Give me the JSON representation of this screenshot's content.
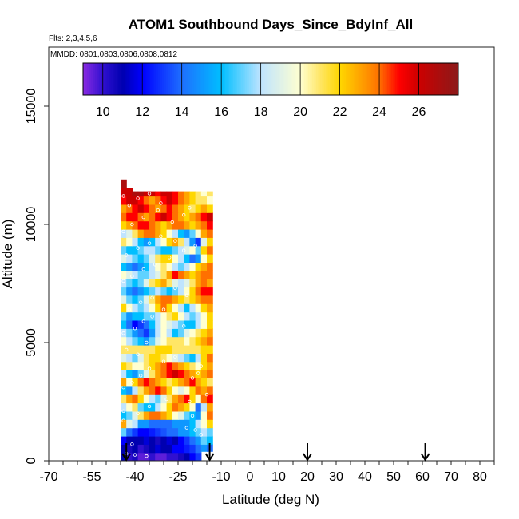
{
  "chart_data": {
    "type": "heatmap",
    "title": "ATOM1 Southbound Days_Since_BdyInf_All",
    "flights_note": "Flts: 2,3,4,5,6",
    "dates_note": "MMDD: 0801,0803,0806,0808,0812",
    "xlabel": "Latitude (deg N)",
    "ylabel": "Altitude (m)",
    "xlim": [
      -70,
      85
    ],
    "ylim": [
      0,
      17500
    ],
    "x_ticks": [
      -70,
      -55,
      -40,
      -25,
      -10,
      0,
      10,
      20,
      30,
      40,
      50,
      60,
      70,
      80
    ],
    "x_minor_step": 5,
    "y_ticks": [
      0,
      5000,
      10000,
      15000
    ],
    "colorbar": {
      "range": [
        9,
        28
      ],
      "ticks": [
        10,
        12,
        14,
        16,
        18,
        20,
        22,
        24,
        26
      ],
      "tick_labels": [
        "10",
        "12",
        "14",
        "16",
        "18",
        "20",
        "22",
        "24",
        "26"
      ],
      "stops": [
        {
          "v": 9,
          "c": "#8a2be2"
        },
        {
          "v": 10,
          "c": "#3010d0"
        },
        {
          "v": 11,
          "c": "#0000b0"
        },
        {
          "v": 12,
          "c": "#0000ff"
        },
        {
          "v": 14,
          "c": "#1e6fff"
        },
        {
          "v": 16,
          "c": "#00bfff"
        },
        {
          "v": 18,
          "c": "#bfe4ff"
        },
        {
          "v": 20,
          "c": "#ffffd0"
        },
        {
          "v": 21,
          "c": "#ffe666"
        },
        {
          "v": 22,
          "c": "#ffd700"
        },
        {
          "v": 23,
          "c": "#ffa500"
        },
        {
          "v": 24,
          "c": "#ff7000"
        },
        {
          "v": 25,
          "c": "#ff0000"
        },
        {
          "v": 26,
          "c": "#cc0000"
        },
        {
          "v": 28,
          "c": "#8b1a1a"
        }
      ]
    },
    "profile_markers_lat": [
      -43,
      -14,
      20,
      61
    ],
    "curtain": {
      "lat_min": -45,
      "lat_max": -13,
      "lat_step": 2,
      "alt_step": 350,
      "column_tops_m": [
        12000,
        12000,
        11400,
        11400,
        11400,
        11400,
        11400,
        11400,
        11400,
        11400,
        11400,
        11400,
        11400,
        11400,
        11400,
        11400
      ],
      "column_bottoms_m": [
        0,
        0,
        0,
        0,
        0,
        0,
        0,
        0,
        0,
        0,
        0,
        0,
        0,
        0,
        400,
        400
      ],
      "levels": [
        {
          "alt_m": 175,
          "values": [
            11,
            10,
            10.5,
            9.5,
            9.5,
            10,
            9.5,
            9.5,
            10,
            10,
            10.5,
            11,
            12,
            13,
            14,
            14
          ]
        },
        {
          "alt_m": 525,
          "values": [
            11,
            10.5,
            11,
            10,
            10.5,
            11,
            11.5,
            11,
            11,
            12,
            12,
            12.5,
            13,
            14,
            15,
            14
          ]
        },
        {
          "alt_m": 875,
          "values": [
            12,
            11,
            11,
            11,
            11.5,
            11,
            10.5,
            11,
            11.5,
            11,
            12,
            13,
            14,
            15,
            17,
            16
          ]
        },
        {
          "alt_m": 1225,
          "values": [
            17,
            14,
            13,
            12,
            12,
            12.5,
            13,
            13.5,
            14,
            14,
            15,
            15,
            16,
            17,
            18,
            17
          ]
        },
        {
          "alt_m": 1575,
          "values": [
            23,
            19,
            18,
            15,
            15,
            14,
            14,
            14,
            14,
            15,
            15,
            15,
            16,
            18,
            20,
            22
          ]
        },
        {
          "alt_m": 1925,
          "values": [
            16,
            17,
            19,
            21,
            23,
            24,
            24,
            23,
            22,
            20,
            19,
            17,
            16,
            15,
            20,
            24
          ]
        },
        {
          "alt_m": 2275,
          "values": [
            18,
            20,
            21,
            17,
            16,
            16,
            18,
            20,
            22,
            24,
            23,
            22,
            20,
            14,
            18,
            23
          ]
        },
        {
          "alt_m": 2625,
          "values": [
            21,
            23,
            24,
            22,
            20,
            18,
            17,
            19,
            21,
            23,
            24,
            25,
            22,
            20,
            24,
            25
          ]
        },
        {
          "alt_m": 2975,
          "values": [
            16,
            15,
            18,
            21,
            23,
            24,
            25,
            24,
            22,
            20,
            19,
            20,
            22,
            24,
            23,
            24
          ]
        },
        {
          "alt_m": 3325,
          "values": [
            23,
            20,
            22,
            24,
            25,
            24,
            23,
            22,
            21,
            22,
            23,
            24,
            25,
            23,
            22,
            21
          ]
        },
        {
          "alt_m": 3675,
          "values": [
            18,
            16,
            15,
            17,
            19,
            21,
            23,
            24,
            25,
            26,
            25,
            24,
            23,
            22,
            23,
            24
          ]
        },
        {
          "alt_m": 4025,
          "values": [
            22,
            21,
            20,
            20,
            21,
            22,
            23,
            24,
            25,
            24,
            23,
            22,
            21,
            20,
            22,
            23
          ]
        },
        {
          "alt_m": 4375,
          "values": [
            19,
            18,
            17,
            19,
            21,
            22,
            22,
            21,
            20,
            19,
            18,
            17,
            16,
            18,
            22,
            24
          ]
        },
        {
          "alt_m": 4725,
          "values": [
            21,
            21,
            21,
            21,
            21,
            21,
            22,
            22,
            22,
            21,
            21,
            21,
            21,
            21,
            22,
            22
          ]
        },
        {
          "alt_m": 5075,
          "values": [
            20,
            18,
            17,
            16,
            15,
            17,
            19,
            20,
            21,
            21,
            21,
            20,
            21,
            22,
            23,
            24
          ]
        },
        {
          "alt_m": 5425,
          "values": [
            18,
            17,
            15,
            14,
            13,
            15,
            18,
            20,
            18,
            16,
            17,
            19,
            20,
            21,
            22,
            23
          ]
        },
        {
          "alt_m": 5775,
          "values": [
            16,
            14,
            12,
            13,
            14,
            16,
            18,
            20,
            19,
            18,
            17,
            16,
            16,
            18,
            20,
            22
          ]
        },
        {
          "alt_m": 6125,
          "values": [
            17,
            15,
            16,
            16,
            17,
            17,
            18,
            20,
            21,
            22,
            20,
            18,
            17,
            18,
            20,
            22
          ]
        },
        {
          "alt_m": 6475,
          "values": [
            22,
            20,
            18,
            17,
            18,
            20,
            22,
            24,
            22,
            20,
            18,
            16,
            18,
            20,
            22,
            23
          ]
        },
        {
          "alt_m": 6825,
          "values": [
            19,
            17,
            16,
            17,
            19,
            21,
            23,
            24,
            24,
            23,
            22,
            21,
            22,
            23,
            24,
            24
          ]
        },
        {
          "alt_m": 7175,
          "values": [
            17,
            15,
            14,
            15,
            16,
            17,
            18,
            17,
            16,
            17,
            18,
            20,
            22,
            24,
            25,
            25
          ]
        },
        {
          "alt_m": 7525,
          "values": [
            18,
            17,
            16,
            17,
            19,
            21,
            22,
            23,
            21,
            19,
            18,
            19,
            21,
            23,
            24,
            23
          ]
        },
        {
          "alt_m": 7875,
          "values": [
            20,
            19,
            18,
            17,
            17,
            18,
            19,
            21,
            23,
            25,
            24,
            23,
            22,
            23,
            24,
            24
          ]
        },
        {
          "alt_m": 8225,
          "values": [
            16,
            15,
            14,
            15,
            16,
            18,
            20,
            21,
            20,
            18,
            17,
            18,
            20,
            22,
            23,
            24
          ]
        },
        {
          "alt_m": 8575,
          "values": [
            19,
            18,
            17,
            16,
            17,
            19,
            21,
            22,
            22,
            20,
            18,
            16,
            14,
            15,
            20,
            22
          ]
        },
        {
          "alt_m": 8925,
          "values": [
            17,
            16,
            16,
            17,
            18,
            18,
            17,
            16,
            16,
            17,
            18,
            19,
            20,
            17,
            22,
            24
          ]
        },
        {
          "alt_m": 9275,
          "values": [
            21,
            20,
            18,
            16,
            15,
            16,
            18,
            20,
            22,
            23,
            21,
            18,
            15,
            13,
            19,
            22
          ]
        },
        {
          "alt_m": 9625,
          "values": [
            18,
            19,
            21,
            23,
            24,
            24,
            23,
            22,
            20,
            18,
            16,
            15,
            17,
            20,
            23,
            24
          ]
        },
        {
          "alt_m": 9975,
          "values": [
            22,
            23,
            24,
            25,
            25,
            24,
            23,
            22,
            23,
            24,
            24,
            23,
            22,
            23,
            24,
            25
          ]
        },
        {
          "alt_m": 10325,
          "values": [
            24,
            25,
            25,
            24,
            23,
            24,
            25,
            26,
            25,
            24,
            23,
            22,
            23,
            24,
            25,
            26
          ]
        },
        {
          "alt_m": 10675,
          "values": [
            23,
            24,
            25,
            26,
            25,
            24,
            23,
            24,
            25,
            24,
            23,
            22,
            21,
            22,
            23,
            22
          ]
        },
        {
          "alt_m": 11025,
          "values": [
            25,
            26,
            26,
            25,
            24,
            23,
            24,
            25,
            26,
            25,
            24,
            23,
            22,
            21,
            21,
            20
          ]
        },
        {
          "alt_m": 11375,
          "values": [
            26,
            26,
            27,
            27,
            26,
            26,
            25,
            26,
            26,
            25,
            24,
            23,
            22,
            21,
            20,
            21
          ]
        },
        {
          "alt_m": 11725,
          "values": [
            27,
            0,
            0,
            0,
            0,
            0,
            0,
            0,
            0,
            0,
            0,
            0,
            0,
            0,
            0,
            0
          ]
        }
      ]
    },
    "sample_points": [
      {
        "lat": -43,
        "alt": 300
      },
      {
        "lat": -40,
        "alt": 250
      },
      {
        "lat": -36,
        "alt": 200
      },
      {
        "lat": -41,
        "alt": 700
      },
      {
        "lat": -44,
        "alt": 1700
      },
      {
        "lat": -44,
        "alt": 2100
      },
      {
        "lat": -39,
        "alt": 2000
      },
      {
        "lat": -35,
        "alt": 2300
      },
      {
        "lat": -29,
        "alt": 2600
      },
      {
        "lat": -22,
        "alt": 1400
      },
      {
        "lat": -20,
        "alt": 1900
      },
      {
        "lat": -19,
        "alt": 1300
      },
      {
        "lat": -17,
        "alt": 1100
      },
      {
        "lat": -21,
        "alt": 2500
      },
      {
        "lat": -15,
        "alt": 2800
      },
      {
        "lat": -44,
        "alt": 3100
      },
      {
        "lat": -41,
        "alt": 3300
      },
      {
        "lat": -38,
        "alt": 3600
      },
      {
        "lat": -35,
        "alt": 3900
      },
      {
        "lat": -30,
        "alt": 4200
      },
      {
        "lat": -20,
        "alt": 3500
      },
      {
        "lat": -18,
        "alt": 3700
      },
      {
        "lat": -43,
        "alt": 4700
      },
      {
        "lat": -39,
        "alt": 4500
      },
      {
        "lat": -36,
        "alt": 5000
      },
      {
        "lat": -26,
        "alt": 4400
      },
      {
        "lat": -17,
        "alt": 4000
      },
      {
        "lat": -44,
        "alt": 5400
      },
      {
        "lat": -40,
        "alt": 5600
      },
      {
        "lat": -37,
        "alt": 5900
      },
      {
        "lat": -34,
        "alt": 6100
      },
      {
        "lat": -30,
        "alt": 6400
      },
      {
        "lat": -23,
        "alt": 5700
      },
      {
        "lat": -42,
        "alt": 6400
      },
      {
        "lat": -38,
        "alt": 6700
      },
      {
        "lat": -34,
        "alt": 6900
      },
      {
        "lat": -26,
        "alt": 7300
      },
      {
        "lat": -22,
        "alt": 7000
      },
      {
        "lat": -44,
        "alt": 7600
      },
      {
        "lat": -41,
        "alt": 7800
      },
      {
        "lat": -37,
        "alt": 8100
      },
      {
        "lat": -33,
        "alt": 8300
      },
      {
        "lat": -28,
        "alt": 8600
      },
      {
        "lat": -23,
        "alt": 8900
      },
      {
        "lat": -43,
        "alt": 8700
      },
      {
        "lat": -39,
        "alt": 9000
      },
      {
        "lat": -35,
        "alt": 9200
      },
      {
        "lat": -31,
        "alt": 9500
      },
      {
        "lat": -26,
        "alt": 9300
      },
      {
        "lat": -19,
        "alt": 9100
      },
      {
        "lat": -44,
        "alt": 9700
      },
      {
        "lat": -41,
        "alt": 10000
      },
      {
        "lat": -37,
        "alt": 10300
      },
      {
        "lat": -32,
        "alt": 10600
      },
      {
        "lat": -27,
        "alt": 10100
      },
      {
        "lat": -23,
        "alt": 10400
      },
      {
        "lat": -42,
        "alt": 10800
      },
      {
        "lat": -39,
        "alt": 11100
      },
      {
        "lat": -35,
        "alt": 11300
      },
      {
        "lat": -31,
        "alt": 10900
      },
      {
        "lat": -21,
        "alt": 10700
      },
      {
        "lat": -44,
        "alt": 11200
      },
      {
        "lat": -29,
        "alt": 11500
      }
    ]
  }
}
